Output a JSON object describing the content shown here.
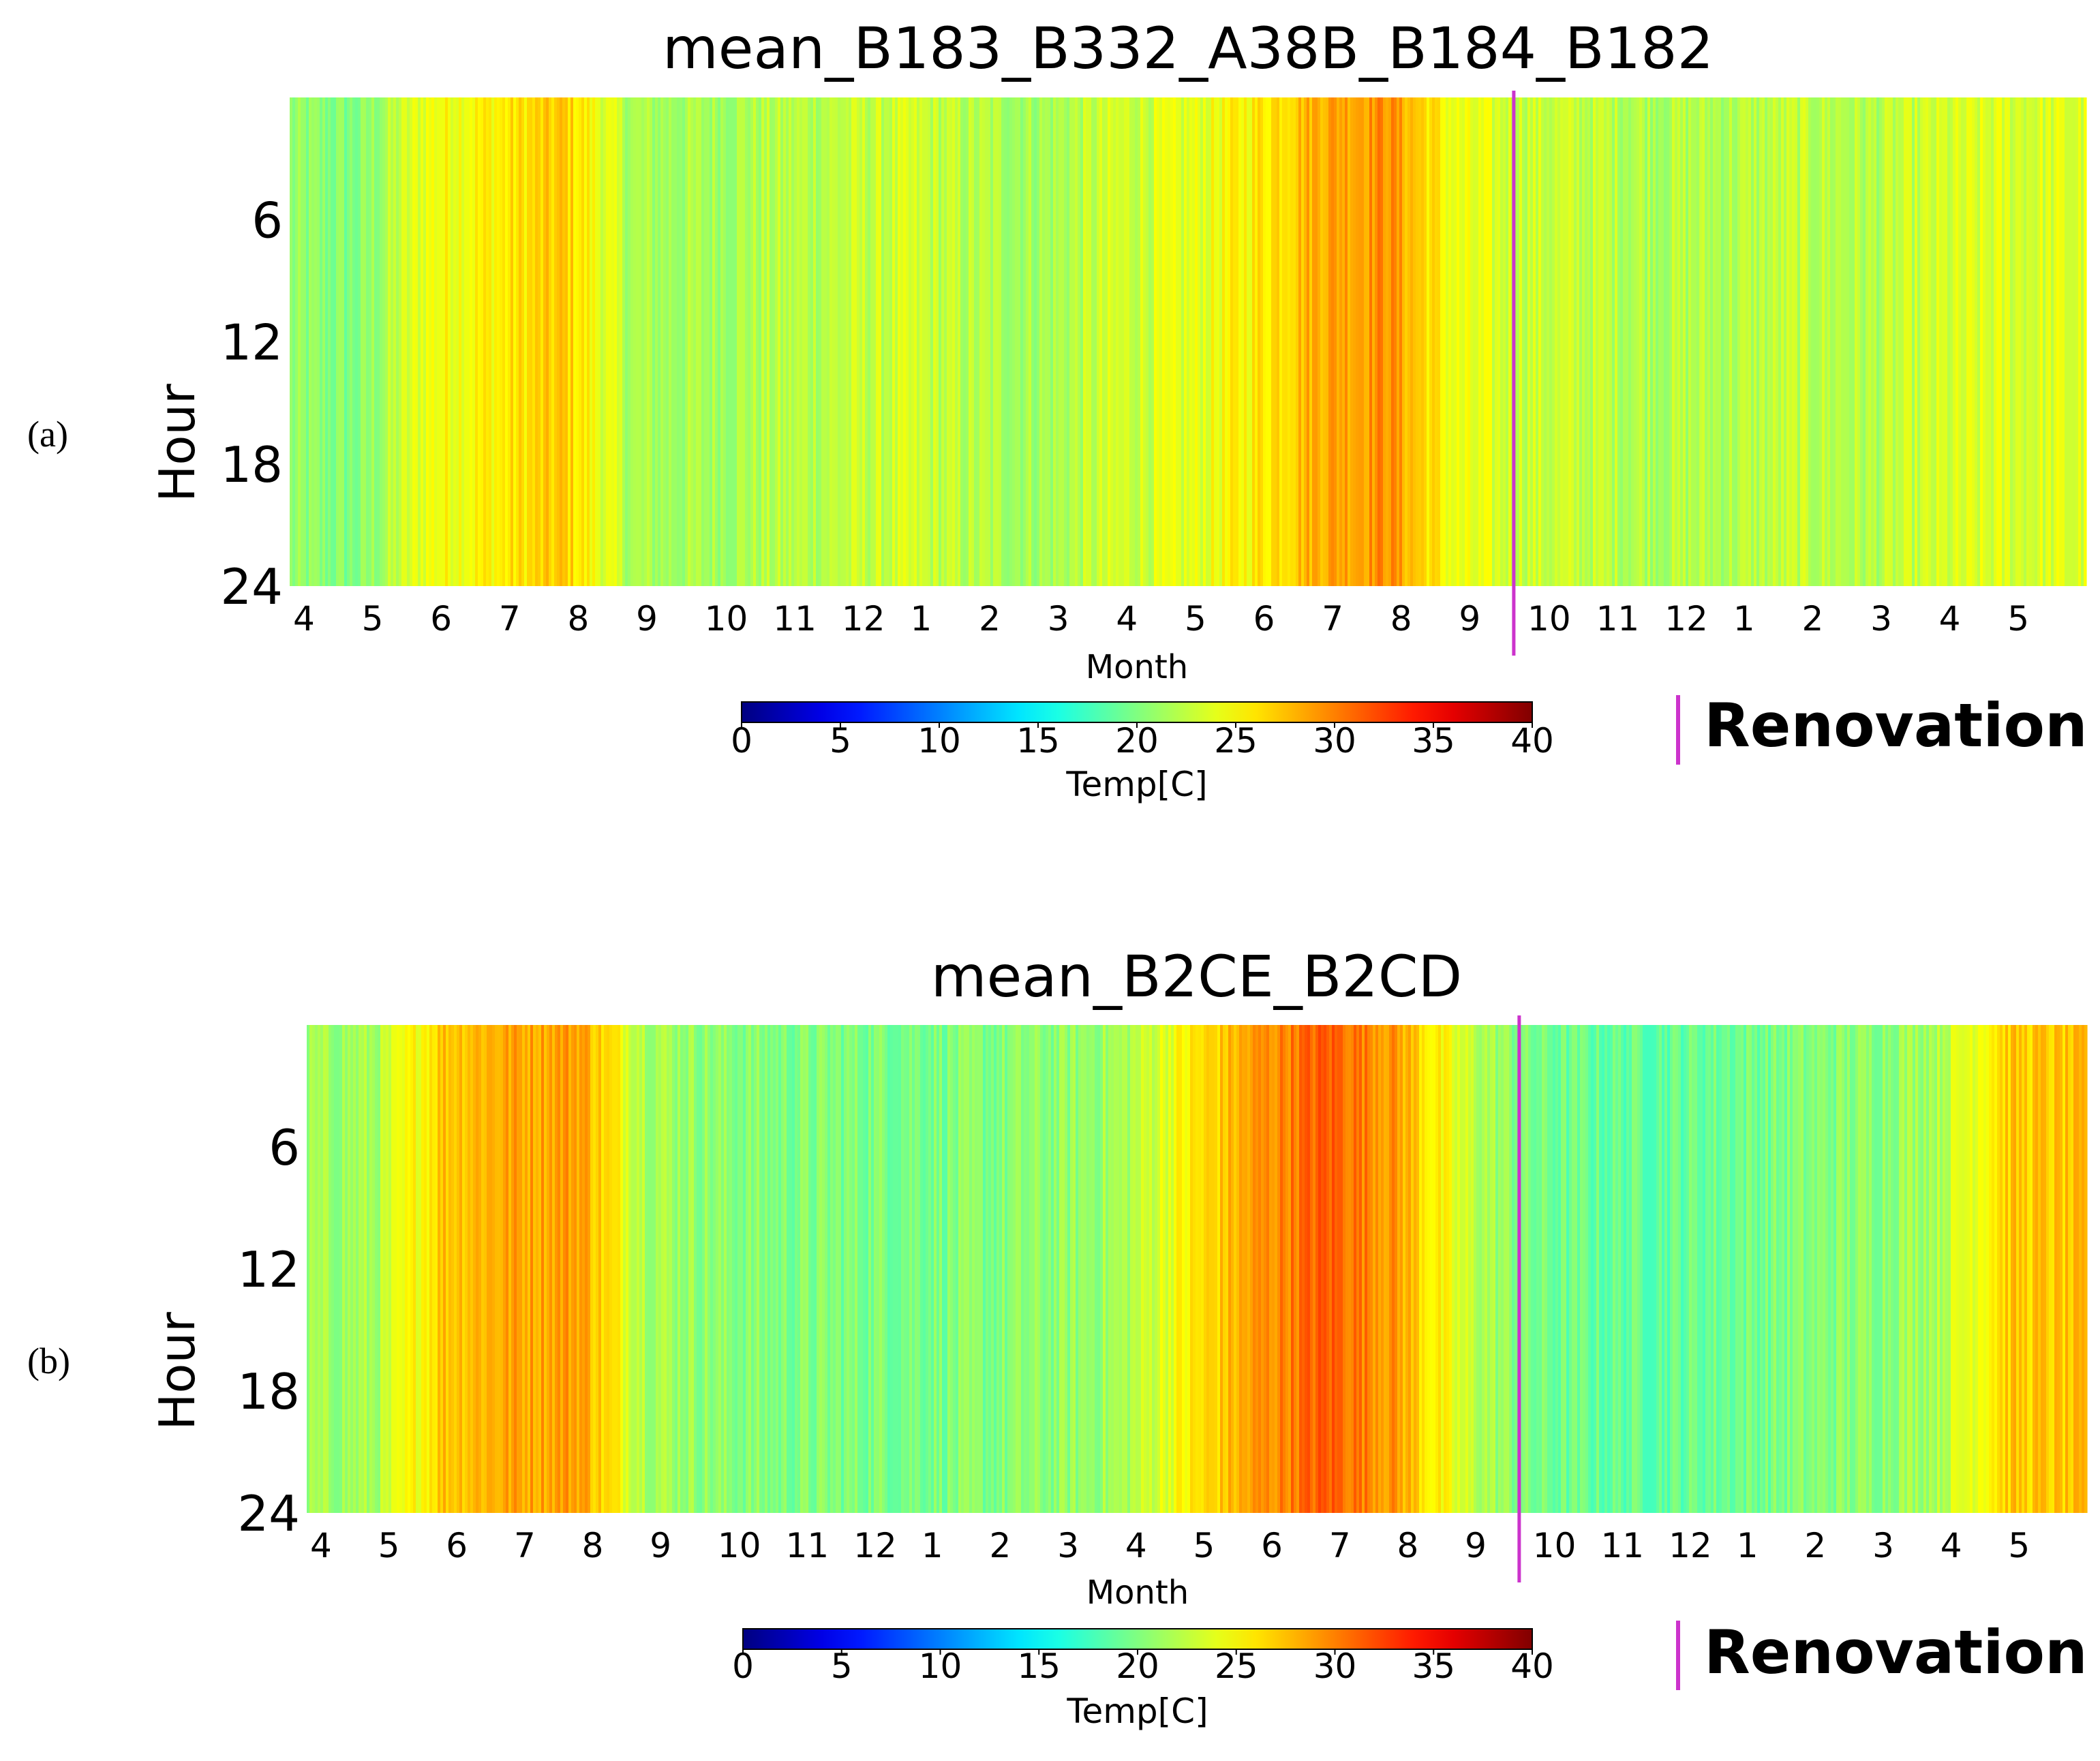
{
  "chart_data": [
    {
      "panel_label": "(a)",
      "type": "heatmap",
      "title": "mean_B183_B332_A38B_B184_B182",
      "xlabel": "Month",
      "ylabel": "Hour",
      "yticks": [
        "6",
        "12",
        "18",
        "24"
      ],
      "y_values": [
        6,
        12,
        18,
        24
      ],
      "ylim": [
        0,
        24
      ],
      "xticks": [
        "4",
        "5",
        "6",
        "7",
        "8",
        "9",
        "10",
        "11",
        "12",
        "1",
        "2",
        "3",
        "4",
        "5",
        "6",
        "7",
        "8",
        "9",
        "10",
        "11",
        "12",
        "1",
        "2",
        "3",
        "4",
        "5"
      ],
      "x_month_index": [
        0,
        1,
        2,
        3,
        4,
        5,
        6,
        7,
        8,
        9,
        10,
        11,
        12,
        13,
        14,
        15,
        16,
        17,
        18,
        19,
        20,
        21,
        22,
        23,
        24,
        25
      ],
      "xlim": [
        0,
        26.2
      ],
      "renovation_at": 17.85,
      "colorbar": {
        "label": "Temp[C]",
        "ticks": [
          "0",
          "5",
          "10",
          "15",
          "20",
          "25",
          "30",
          "35",
          "40"
        ],
        "range": [
          0,
          40
        ]
      },
      "legend": {
        "label": "Renovation",
        "color": "#cc33cc"
      },
      "monthly_mean_temp": [
        {
          "month_index": 0,
          "temp": 20.5
        },
        {
          "month_index": 1,
          "temp": 20.0
        },
        {
          "month_index": 2,
          "temp": 24.5
        },
        {
          "month_index": 3,
          "temp": 25.5
        },
        {
          "month_index": 4,
          "temp": 27.0
        },
        {
          "month_index": 5,
          "temp": 21.5
        },
        {
          "month_index": 6,
          "temp": 21.5
        },
        {
          "month_index": 7,
          "temp": 22.0
        },
        {
          "month_index": 8,
          "temp": 22.5
        },
        {
          "month_index": 9,
          "temp": 23.0
        },
        {
          "month_index": 10,
          "temp": 22.0
        },
        {
          "month_index": 11,
          "temp": 21.5
        },
        {
          "month_index": 12,
          "temp": 23.0
        },
        {
          "month_index": 13,
          "temp": 23.5
        },
        {
          "month_index": 14,
          "temp": 25.5
        },
        {
          "month_index": 15,
          "temp": 28.5
        },
        {
          "month_index": 16,
          "temp": 29.5
        },
        {
          "month_index": 17,
          "temp": 24.0
        },
        {
          "month_index": 18,
          "temp": 23.0
        },
        {
          "month_index": 19,
          "temp": 22.5
        },
        {
          "month_index": 20,
          "temp": 22.0
        },
        {
          "month_index": 21,
          "temp": 22.0
        },
        {
          "month_index": 22,
          "temp": 22.5
        },
        {
          "month_index": 23,
          "temp": 22.0
        },
        {
          "month_index": 24,
          "temp": 23.0
        },
        {
          "month_index": 25,
          "temp": 23.5
        }
      ]
    },
    {
      "panel_label": "(b)",
      "type": "heatmap",
      "title": "mean_B2CE_B2CD",
      "xlabel": "Month",
      "ylabel": "Hour",
      "yticks": [
        "6",
        "12",
        "18",
        "24"
      ],
      "y_values": [
        6,
        12,
        18,
        24
      ],
      "ylim": [
        0,
        24
      ],
      "xticks": [
        "4",
        "5",
        "6",
        "7",
        "8",
        "9",
        "10",
        "11",
        "12",
        "1",
        "2",
        "3",
        "4",
        "5",
        "6",
        "7",
        "8",
        "9",
        "10",
        "11",
        "12",
        "1",
        "2",
        "3",
        "4",
        "5"
      ],
      "x_month_index": [
        0,
        1,
        2,
        3,
        4,
        5,
        6,
        7,
        8,
        9,
        10,
        11,
        12,
        13,
        14,
        15,
        16,
        17,
        18,
        19,
        20,
        21,
        22,
        23,
        24,
        25
      ],
      "xlim": [
        0,
        26.2
      ],
      "renovation_at": 17.85,
      "colorbar": {
        "label": "Temp[C]",
        "ticks": [
          "0",
          "5",
          "10",
          "15",
          "20",
          "25",
          "30",
          "35",
          "40"
        ],
        "range": [
          0,
          40
        ]
      },
      "legend": {
        "label": "Renovation",
        "color": "#cc33cc"
      },
      "monthly_mean_temp": [
        {
          "month_index": 0,
          "temp": 21.0
        },
        {
          "month_index": 1,
          "temp": 21.5
        },
        {
          "month_index": 2,
          "temp": 27.5
        },
        {
          "month_index": 3,
          "temp": 28.5
        },
        {
          "month_index": 4,
          "temp": 29.0
        },
        {
          "month_index": 5,
          "temp": 22.0
        },
        {
          "month_index": 6,
          "temp": 20.5
        },
        {
          "month_index": 7,
          "temp": 20.0
        },
        {
          "month_index": 8,
          "temp": 20.0
        },
        {
          "month_index": 9,
          "temp": 20.0
        },
        {
          "month_index": 10,
          "temp": 20.0
        },
        {
          "month_index": 11,
          "temp": 20.5
        },
        {
          "month_index": 12,
          "temp": 21.5
        },
        {
          "month_index": 13,
          "temp": 25.5
        },
        {
          "month_index": 14,
          "temp": 29.0
        },
        {
          "month_index": 15,
          "temp": 31.5
        },
        {
          "month_index": 16,
          "temp": 29.0
        },
        {
          "month_index": 17,
          "temp": 23.0
        },
        {
          "month_index": 18,
          "temp": 19.5
        },
        {
          "month_index": 19,
          "temp": 19.0
        },
        {
          "month_index": 20,
          "temp": 19.0
        },
        {
          "month_index": 21,
          "temp": 19.5
        },
        {
          "month_index": 22,
          "temp": 20.0
        },
        {
          "month_index": 23,
          "temp": 20.5
        },
        {
          "month_index": 24,
          "temp": 22.0
        },
        {
          "month_index": 25,
          "temp": 27.0
        }
      ]
    }
  ]
}
